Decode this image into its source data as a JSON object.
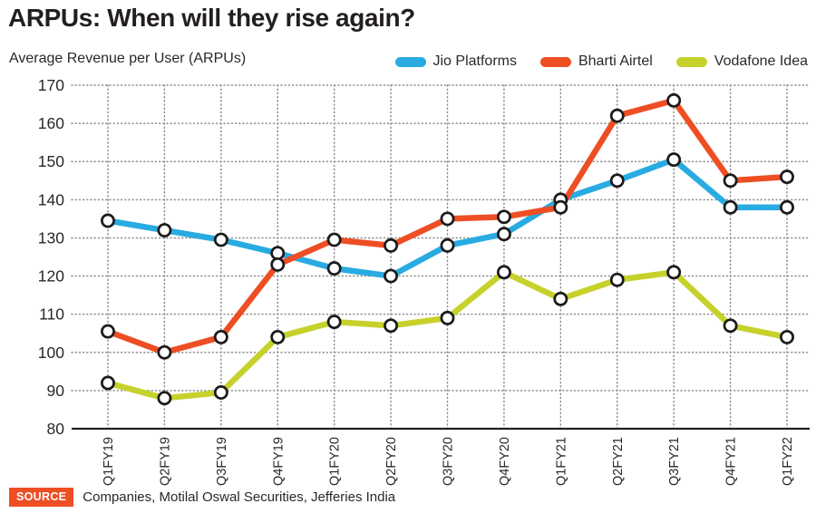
{
  "page": {
    "title": "ARPUs: When will they rise again?",
    "subtitle": "Average Revenue per User (ARPUs)"
  },
  "legend": {
    "items": [
      {
        "label": "Jio Platforms",
        "color": "#29abe2"
      },
      {
        "label": "Bharti Airtel",
        "color": "#ee4e23"
      },
      {
        "label": "Vodafone Idea",
        "color": "#c6d22b"
      }
    ]
  },
  "chart_data": {
    "type": "line",
    "title": "ARPUs: When will they rise again?",
    "subtitle": "Average Revenue per User (ARPUs)",
    "categories": [
      "Q1FY19",
      "Q2FY19",
      "Q3FY19",
      "Q4FY19",
      "Q1FY20",
      "Q2FY20",
      "Q3FY20",
      "Q4FY20",
      "Q1FY21",
      "Q2FY21",
      "Q3FY21",
      "Q4FY21",
      "Q1FY22"
    ],
    "series": [
      {
        "name": "Jio Platforms",
        "color": "#29abe2",
        "values": [
          134.5,
          132,
          129.5,
          126,
          122,
          120,
          128,
          131,
          140,
          145,
          150.5,
          138,
          138
        ]
      },
      {
        "name": "Bharti Airtel",
        "color": "#ee4e23",
        "values": [
          105.5,
          100,
          104,
          123,
          129.5,
          128,
          135,
          135.5,
          138,
          162,
          166,
          145,
          146
        ]
      },
      {
        "name": "Vodafone Idea",
        "color": "#c6d22b",
        "values": [
          92,
          88,
          89.5,
          104,
          108,
          107,
          109,
          121,
          114,
          119,
          121,
          107,
          104
        ]
      }
    ],
    "ylim": [
      80,
      170
    ],
    "yticks": [
      80,
      90,
      100,
      110,
      120,
      130,
      140,
      150,
      160,
      170
    ],
    "grid": "dotted",
    "legend_position": "top-right",
    "marker": "open-circle",
    "xlabel": "",
    "ylabel": ""
  },
  "source": {
    "badge": "SOURCE",
    "text": "Companies, Motilal Oswal Securities, Jefferies India"
  },
  "colors": {
    "accent_orange": "#ee4e23",
    "text_dark": "#231f20",
    "grid_gray": "#8c8c8c",
    "marker_ring": "#1b1b1b"
  }
}
